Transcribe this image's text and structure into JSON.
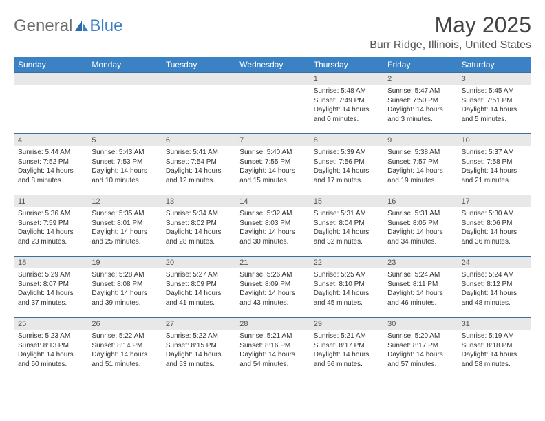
{
  "logo": {
    "part1": "General",
    "part2": "Blue"
  },
  "title": "May 2025",
  "location": "Burr Ridge, Illinois, United States",
  "colors": {
    "header_bg": "#3b82c4",
    "daynum_bg": "#e8e8e8",
    "week_border": "#3b6fa0",
    "logo_gray": "#6b6b6b",
    "logo_blue": "#3b7fc4"
  },
  "day_names": [
    "Sunday",
    "Monday",
    "Tuesday",
    "Wednesday",
    "Thursday",
    "Friday",
    "Saturday"
  ],
  "weeks": [
    [
      null,
      null,
      null,
      null,
      {
        "n": "1",
        "sr": "5:48 AM",
        "ss": "7:49 PM",
        "dl": "14 hours and 0 minutes."
      },
      {
        "n": "2",
        "sr": "5:47 AM",
        "ss": "7:50 PM",
        "dl": "14 hours and 3 minutes."
      },
      {
        "n": "3",
        "sr": "5:45 AM",
        "ss": "7:51 PM",
        "dl": "14 hours and 5 minutes."
      }
    ],
    [
      {
        "n": "4",
        "sr": "5:44 AM",
        "ss": "7:52 PM",
        "dl": "14 hours and 8 minutes."
      },
      {
        "n": "5",
        "sr": "5:43 AM",
        "ss": "7:53 PM",
        "dl": "14 hours and 10 minutes."
      },
      {
        "n": "6",
        "sr": "5:41 AM",
        "ss": "7:54 PM",
        "dl": "14 hours and 12 minutes."
      },
      {
        "n": "7",
        "sr": "5:40 AM",
        "ss": "7:55 PM",
        "dl": "14 hours and 15 minutes."
      },
      {
        "n": "8",
        "sr": "5:39 AM",
        "ss": "7:56 PM",
        "dl": "14 hours and 17 minutes."
      },
      {
        "n": "9",
        "sr": "5:38 AM",
        "ss": "7:57 PM",
        "dl": "14 hours and 19 minutes."
      },
      {
        "n": "10",
        "sr": "5:37 AM",
        "ss": "7:58 PM",
        "dl": "14 hours and 21 minutes."
      }
    ],
    [
      {
        "n": "11",
        "sr": "5:36 AM",
        "ss": "7:59 PM",
        "dl": "14 hours and 23 minutes."
      },
      {
        "n": "12",
        "sr": "5:35 AM",
        "ss": "8:01 PM",
        "dl": "14 hours and 25 minutes."
      },
      {
        "n": "13",
        "sr": "5:34 AM",
        "ss": "8:02 PM",
        "dl": "14 hours and 28 minutes."
      },
      {
        "n": "14",
        "sr": "5:32 AM",
        "ss": "8:03 PM",
        "dl": "14 hours and 30 minutes."
      },
      {
        "n": "15",
        "sr": "5:31 AM",
        "ss": "8:04 PM",
        "dl": "14 hours and 32 minutes."
      },
      {
        "n": "16",
        "sr": "5:31 AM",
        "ss": "8:05 PM",
        "dl": "14 hours and 34 minutes."
      },
      {
        "n": "17",
        "sr": "5:30 AM",
        "ss": "8:06 PM",
        "dl": "14 hours and 36 minutes."
      }
    ],
    [
      {
        "n": "18",
        "sr": "5:29 AM",
        "ss": "8:07 PM",
        "dl": "14 hours and 37 minutes."
      },
      {
        "n": "19",
        "sr": "5:28 AM",
        "ss": "8:08 PM",
        "dl": "14 hours and 39 minutes."
      },
      {
        "n": "20",
        "sr": "5:27 AM",
        "ss": "8:09 PM",
        "dl": "14 hours and 41 minutes."
      },
      {
        "n": "21",
        "sr": "5:26 AM",
        "ss": "8:09 PM",
        "dl": "14 hours and 43 minutes."
      },
      {
        "n": "22",
        "sr": "5:25 AM",
        "ss": "8:10 PM",
        "dl": "14 hours and 45 minutes."
      },
      {
        "n": "23",
        "sr": "5:24 AM",
        "ss": "8:11 PM",
        "dl": "14 hours and 46 minutes."
      },
      {
        "n": "24",
        "sr": "5:24 AM",
        "ss": "8:12 PM",
        "dl": "14 hours and 48 minutes."
      }
    ],
    [
      {
        "n": "25",
        "sr": "5:23 AM",
        "ss": "8:13 PM",
        "dl": "14 hours and 50 minutes."
      },
      {
        "n": "26",
        "sr": "5:22 AM",
        "ss": "8:14 PM",
        "dl": "14 hours and 51 minutes."
      },
      {
        "n": "27",
        "sr": "5:22 AM",
        "ss": "8:15 PM",
        "dl": "14 hours and 53 minutes."
      },
      {
        "n": "28",
        "sr": "5:21 AM",
        "ss": "8:16 PM",
        "dl": "14 hours and 54 minutes."
      },
      {
        "n": "29",
        "sr": "5:21 AM",
        "ss": "8:17 PM",
        "dl": "14 hours and 56 minutes."
      },
      {
        "n": "30",
        "sr": "5:20 AM",
        "ss": "8:17 PM",
        "dl": "14 hours and 57 minutes."
      },
      {
        "n": "31",
        "sr": "5:19 AM",
        "ss": "8:18 PM",
        "dl": "14 hours and 58 minutes."
      }
    ]
  ],
  "labels": {
    "sunrise": "Sunrise:",
    "sunset": "Sunset:",
    "daylight": "Daylight:"
  }
}
